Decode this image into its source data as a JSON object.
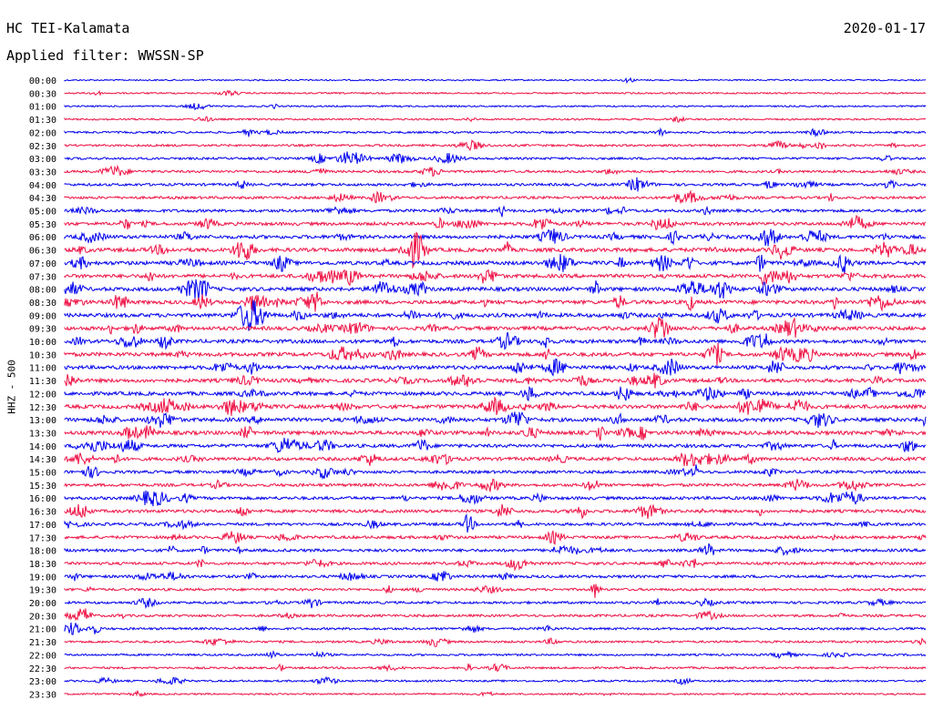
{
  "header": {
    "station": "HC TEI-Kalamata",
    "date": "2020-01-17",
    "filter": "Applied filter: WWSSN-SP"
  },
  "chart_data": {
    "type": "line",
    "ylabel": "HHZ - 500",
    "rows": [
      "00:00",
      "00:30",
      "01:00",
      "01:30",
      "02:00",
      "02:30",
      "03:00",
      "03:30",
      "04:00",
      "04:30",
      "05:00",
      "05:30",
      "06:00",
      "06:30",
      "07:00",
      "07:30",
      "08:00",
      "08:30",
      "09:00",
      "09:30",
      "10:00",
      "10:30",
      "11:00",
      "11:30",
      "12:00",
      "12:30",
      "13:00",
      "13:30",
      "14:00",
      "14:30",
      "15:00",
      "15:30",
      "16:00",
      "16:30",
      "17:00",
      "17:30",
      "18:00",
      "18:30",
      "19:00",
      "19:30",
      "20:00",
      "20:30",
      "21:00",
      "21:30",
      "22:00",
      "22:30",
      "23:00",
      "23:30"
    ],
    "colors": [
      "#0000ee",
      "#ee1144"
    ],
    "activity": [
      0.1,
      0.15,
      0.15,
      0.2,
      0.3,
      0.35,
      0.4,
      0.45,
      0.5,
      0.5,
      0.6,
      0.7,
      0.8,
      0.9,
      0.9,
      0.85,
      0.9,
      0.9,
      0.9,
      0.85,
      0.85,
      0.9,
      0.85,
      0.85,
      0.85,
      0.9,
      0.9,
      0.9,
      0.75,
      0.75,
      0.6,
      0.6,
      0.65,
      0.65,
      0.6,
      0.6,
      0.6,
      0.55,
      0.55,
      0.45,
      0.45,
      0.45,
      0.4,
      0.35,
      0.3,
      0.3,
      0.25,
      0.2
    ]
  }
}
